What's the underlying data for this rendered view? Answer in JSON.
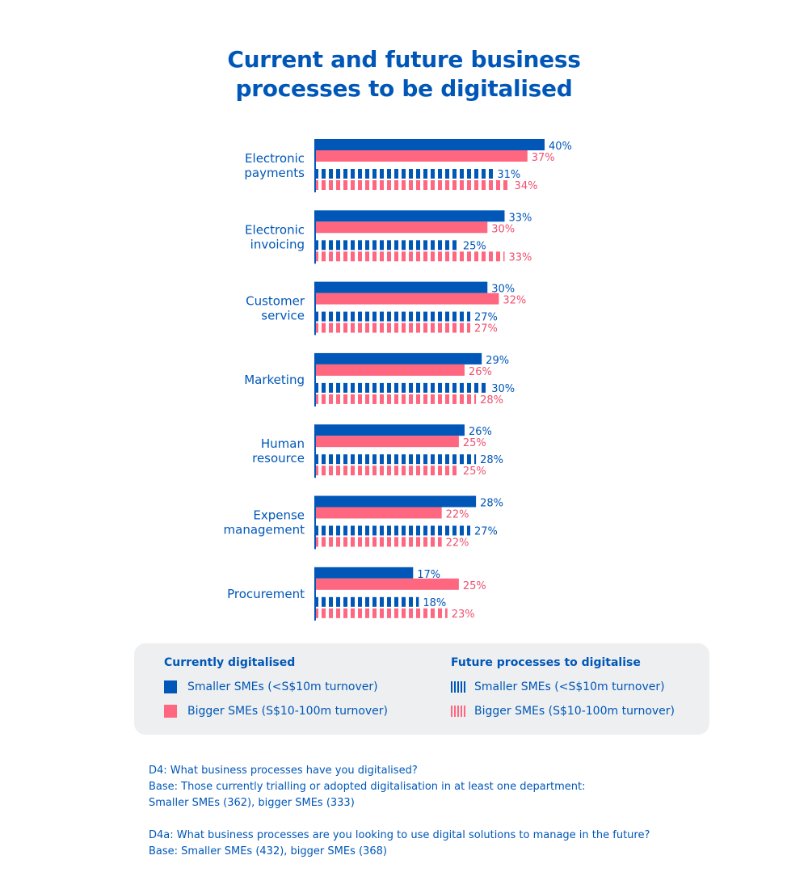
{
  "title_lines": [
    "Current and future business",
    "processes to be digitalised"
  ],
  "colors": {
    "smaller": "#0057b8",
    "bigger": "#ff6680",
    "bigger_label": "#f0506e",
    "axis": "#0057b8",
    "legend_bg": "#eeeff0"
  },
  "chart_data": {
    "type": "bar",
    "orientation": "horizontal",
    "title": "Current and future business processes to be digitalised",
    "xlabel": "",
    "ylabel": "",
    "unit": "%",
    "xlim": [
      0,
      40
    ],
    "grid": false,
    "legend_position": "bottom",
    "categories": [
      [
        "Electronic",
        "payments"
      ],
      [
        "Electronic",
        "invoicing"
      ],
      [
        "Customer",
        "service"
      ],
      [
        "Marketing"
      ],
      [
        "Human",
        "resource"
      ],
      [
        "Expense",
        "management"
      ],
      [
        "Procurement"
      ]
    ],
    "series": [
      {
        "name": "Currently digitalised – Smaller SMEs (<S$10m turnover)",
        "style": "solid",
        "color_key": "smaller",
        "values": [
          40,
          33,
          30,
          29,
          26,
          28,
          17
        ]
      },
      {
        "name": "Currently digitalised – Bigger SMEs (S$10-100m turnover)",
        "style": "solid",
        "color_key": "bigger",
        "values": [
          37,
          30,
          32,
          26,
          25,
          22,
          25
        ]
      },
      {
        "name": "Future processes to digitalise – Smaller SMEs (<S$10m turnover)",
        "style": "striped",
        "color_key": "smaller",
        "values": [
          31,
          25,
          27,
          30,
          28,
          27,
          18
        ]
      },
      {
        "name": "Future processes to digitalise – Bigger SMEs (S$10-100m turnover)",
        "style": "striped",
        "color_key": "bigger",
        "values": [
          34,
          33,
          27,
          28,
          25,
          22,
          23
        ]
      }
    ]
  },
  "legend": {
    "current": {
      "heading": "Currently digitalised",
      "items": [
        "Smaller SMEs (<S$10m turnover)",
        "Bigger SMEs (S$10-100m turnover)"
      ]
    },
    "future": {
      "heading": "Future processes to digitalise",
      "items": [
        "Smaller SMEs (<S$10m turnover)",
        "Bigger SMEs (S$10-100m turnover)"
      ]
    }
  },
  "notes": {
    "d4": [
      "D4: What business processes have you digitalised?",
      "Base: Those currently trialling or adopted digitalisation in at least one department:",
      "Smaller SMEs (362), bigger SMEs (333)"
    ],
    "d4a": [
      "D4a: What business processes are you looking to use digital solutions to manage in the future?",
      "Base: Smaller SMEs (432), bigger SMEs (368)"
    ]
  }
}
